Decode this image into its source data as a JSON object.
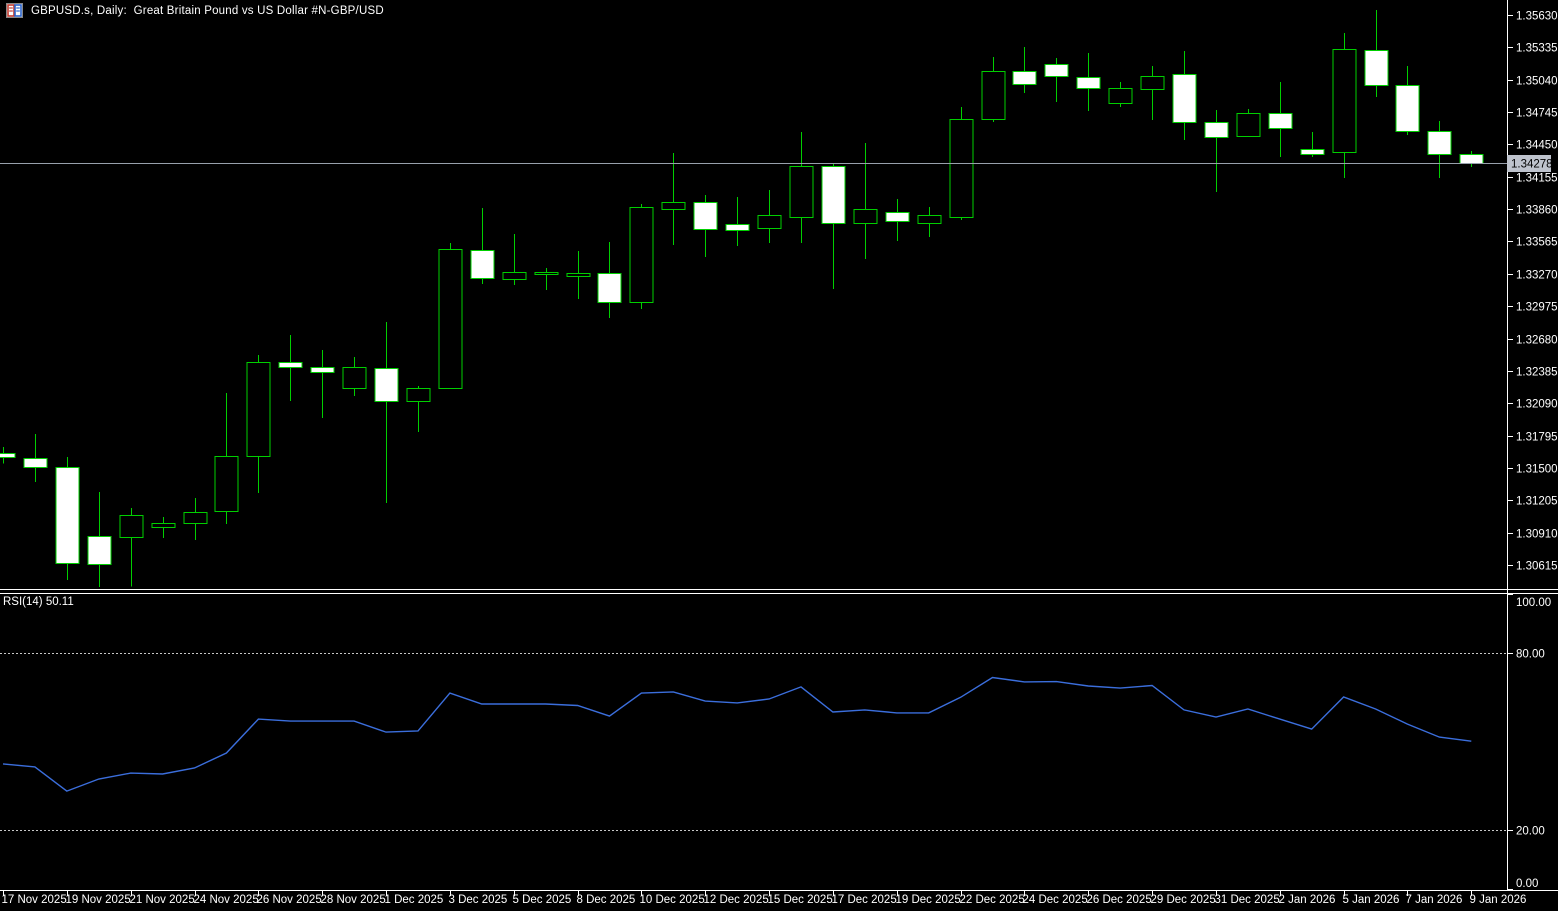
{
  "header": {
    "title": "GBPUSD.s, Daily:  Great Britain Pound vs US Dollar #N-GBP/USD",
    "icon": "candlestick-chart-icon"
  },
  "colors": {
    "background": "#000000",
    "candle_outline": "#00CF00",
    "bull_fill": "#000000",
    "bear_fill": "#FFFFFF",
    "axis_text": "#FFFFFF",
    "axis_line": "#FFFFFF",
    "level_dashed": "#C8C8C8",
    "rsi_line": "#3B6EDC",
    "current_price_line": "#98A0AC",
    "price_marker_bg": "#BEC3CD",
    "price_marker_text": "#000000"
  },
  "chart_data": {
    "type": "candlestick",
    "symbol": "GBPUSD.s",
    "timeframe": "Daily",
    "description": "Great Britain Pound vs US Dollar #N-GBP/USD",
    "price_axis": {
      "ticks": [
        "1.35630",
        "1.35335",
        "1.35040",
        "1.34745",
        "1.34450",
        "1.34155",
        "1.33860",
        "1.33565",
        "1.33270",
        "1.32975",
        "1.32680",
        "1.32385",
        "1.32090",
        "1.31795",
        "1.31500",
        "1.31205",
        "1.30910",
        "1.30615"
      ],
      "tick_step": 0.00295,
      "current_price": 1.34278,
      "current_price_label": "1.34278"
    },
    "x_axis": {
      "labels": [
        "17 Nov 2025",
        "19 Nov 2025",
        "21 Nov 2025",
        "24 Nov 2025",
        "26 Nov 2025",
        "28 Nov 2025",
        "1 Dec 2025",
        "3 Dec 2025",
        "5 Dec 2025",
        "8 Dec 2025",
        "10 Dec 2025",
        "12 Dec 2025",
        "15 Dec 2025",
        "17 Dec 2025",
        "19 Dec 2025",
        "22 Dec 2025",
        "24 Dec 2025",
        "26 Dec 2025",
        "29 Dec 2025",
        "31 Dec 2025",
        "2 Jan 2026",
        "5 Jan 2026",
        "7 Jan 2026",
        "9 Jan 2026"
      ],
      "label_every_n_bars": 2
    },
    "candles": [
      {
        "d": "17 Nov 2025",
        "o": 1.3164,
        "h": 1.3169,
        "l": 1.3154,
        "c": 1.316
      },
      {
        "d": "18 Nov 2025",
        "o": 1.3159,
        "h": 1.31809,
        "l": 1.31371,
        "c": 1.31508
      },
      {
        "d": "19 Nov 2025",
        "o": 1.31508,
        "h": 1.31599,
        "l": 1.30477,
        "c": 1.30632
      },
      {
        "d": "20 Nov 2025",
        "o": 1.30879,
        "h": 1.3128,
        "l": 1.30413,
        "c": 1.30623
      },
      {
        "d": "21 Nov 2025",
        "o": 1.30869,
        "h": 1.31134,
        "l": 1.3042,
        "c": 1.3107
      },
      {
        "d": "23 Nov 2025",
        "o": 1.30961,
        "h": 1.31052,
        "l": 1.3086,
        "c": 1.30997
      },
      {
        "d": "24 Nov 2025",
        "o": 1.30997,
        "h": 1.31225,
        "l": 1.30842,
        "c": 1.31097
      },
      {
        "d": "25 Nov 2025",
        "o": 1.31106,
        "h": 1.32183,
        "l": 1.30988,
        "c": 1.31608
      },
      {
        "d": "26 Nov 2025",
        "o": 1.31608,
        "h": 1.32529,
        "l": 1.31271,
        "c": 1.32465
      },
      {
        "d": "27 Nov 2025",
        "o": 1.32465,
        "h": 1.32712,
        "l": 1.3211,
        "c": 1.3242
      },
      {
        "d": "28 Nov 2025",
        "o": 1.3242,
        "h": 1.32575,
        "l": 1.31955,
        "c": 1.32374
      },
      {
        "d": "30 Nov 2025",
        "o": 1.32228,
        "h": 1.32511,
        "l": 1.32155,
        "c": 1.3242
      },
      {
        "d": "1 Dec 2025",
        "o": 1.32411,
        "h": 1.3283,
        "l": 1.31179,
        "c": 1.3211
      },
      {
        "d": "2 Dec 2025",
        "o": 1.3211,
        "h": 1.32246,
        "l": 1.31827,
        "c": 1.32228
      },
      {
        "d": "3 Dec 2025",
        "o": 1.32228,
        "h": 1.33551,
        "l": 1.32228,
        "c": 1.33496
      },
      {
        "d": "4 Dec 2025",
        "o": 1.33487,
        "h": 1.3387,
        "l": 1.33177,
        "c": 1.33232
      },
      {
        "d": "5 Dec 2025",
        "o": 1.33223,
        "h": 1.33633,
        "l": 1.33168,
        "c": 1.33286
      },
      {
        "d": "7 Dec 2025",
        "o": 1.33268,
        "h": 1.33323,
        "l": 1.33122,
        "c": 1.33286
      },
      {
        "d": "8 Dec 2025",
        "o": 1.3325,
        "h": 1.33478,
        "l": 1.3304,
        "c": 1.33277
      },
      {
        "d": "9 Dec 2025",
        "o": 1.33277,
        "h": 1.3356,
        "l": 1.32867,
        "c": 1.33013
      },
      {
        "d": "10 Dec 2025",
        "o": 1.33013,
        "h": 1.33906,
        "l": 1.32949,
        "c": 1.33879
      },
      {
        "d": "11 Dec 2025",
        "o": 1.33861,
        "h": 1.34372,
        "l": 1.33532,
        "c": 1.33925
      },
      {
        "d": "12 Dec 2025",
        "o": 1.33925,
        "h": 1.33988,
        "l": 1.33423,
        "c": 1.33678
      },
      {
        "d": "14 Dec 2025",
        "o": 1.33724,
        "h": 1.3397,
        "l": 1.33523,
        "c": 1.33669
      },
      {
        "d": "15 Dec 2025",
        "o": 1.33687,
        "h": 1.34034,
        "l": 1.33551,
        "c": 1.33806
      },
      {
        "d": "16 Dec 2025",
        "o": 1.33788,
        "h": 1.34563,
        "l": 1.33551,
        "c": 1.34253
      },
      {
        "d": "17 Dec 2025",
        "o": 1.34253,
        "h": 1.3428,
        "l": 1.33131,
        "c": 1.33733
      },
      {
        "d": "18 Dec 2025",
        "o": 1.33733,
        "h": 1.34463,
        "l": 1.33405,
        "c": 1.33861
      },
      {
        "d": "19 Dec 2025",
        "o": 1.33833,
        "h": 1.33952,
        "l": 1.33569,
        "c": 1.33751
      },
      {
        "d": "21 Dec 2025",
        "o": 1.33733,
        "h": 1.33879,
        "l": 1.33605,
        "c": 1.33806
      },
      {
        "d": "22 Dec 2025",
        "o": 1.33788,
        "h": 1.34791,
        "l": 1.3376,
        "c": 1.34682
      },
      {
        "d": "23 Dec 2025",
        "o": 1.34682,
        "h": 1.35247,
        "l": 1.34654,
        "c": 1.35119
      },
      {
        "d": "24 Dec 2025",
        "o": 1.35119,
        "h": 1.35338,
        "l": 1.34919,
        "c": 1.35001
      },
      {
        "d": "25 Dec 2025",
        "o": 1.35183,
        "h": 1.35238,
        "l": 1.34837,
        "c": 1.35074
      },
      {
        "d": "26 Dec 2025",
        "o": 1.35065,
        "h": 1.35283,
        "l": 1.34755,
        "c": 1.34964
      },
      {
        "d": "28 Dec 2025",
        "o": 1.34828,
        "h": 1.35019,
        "l": 1.34791,
        "c": 1.34964
      },
      {
        "d": "29 Dec 2025",
        "o": 1.34955,
        "h": 1.35165,
        "l": 1.34672,
        "c": 1.35074
      },
      {
        "d": "30 Dec 2025",
        "o": 1.35092,
        "h": 1.35302,
        "l": 1.3449,
        "c": 1.34654
      },
      {
        "d": "31 Dec 2025",
        "o": 1.34654,
        "h": 1.34764,
        "l": 1.34016,
        "c": 1.34517
      },
      {
        "d": "1 Jan 2026",
        "o": 1.34527,
        "h": 1.34773,
        "l": 1.34527,
        "c": 1.34736
      },
      {
        "d": "2 Jan 2026",
        "o": 1.34736,
        "h": 1.35019,
        "l": 1.34335,
        "c": 1.346
      },
      {
        "d": "4 Jan 2026",
        "o": 1.34408,
        "h": 1.34563,
        "l": 1.34335,
        "c": 1.34362
      },
      {
        "d": "5 Jan 2026",
        "o": 1.34381,
        "h": 1.35466,
        "l": 1.34143,
        "c": 1.3532
      },
      {
        "d": "6 Jan 2026",
        "o": 1.35311,
        "h": 1.35676,
        "l": 1.34882,
        "c": 1.34992
      },
      {
        "d": "7 Jan 2026",
        "o": 1.34992,
        "h": 1.35165,
        "l": 1.34536,
        "c": 1.34572
      },
      {
        "d": "8 Jan 2026",
        "o": 1.34572,
        "h": 1.34662,
        "l": 1.34143,
        "c": 1.34362
      },
      {
        "d": "9 Jan 2026",
        "o": 1.34362,
        "h": 1.3439,
        "l": 1.34244,
        "c": 1.34278
      }
    ],
    "rsi": {
      "label": "RSI(14) 50.11",
      "period": 14,
      "current": 50.11,
      "axis_labels": [
        "100.00",
        "80.00",
        "20.00",
        "0.00"
      ],
      "level_lines": [
        80,
        20
      ],
      "range": [
        0,
        100
      ],
      "values": [
        42.4,
        41.4,
        33.2,
        37.3,
        39.3,
        39.0,
        41.0,
        46.1,
        57.6,
        56.9,
        56.9,
        56.9,
        53.2,
        53.6,
        66.4,
        62.7,
        62.7,
        62.7,
        62.2,
        58.6,
        66.4,
        66.8,
        63.7,
        63.1,
        64.4,
        68.5,
        60.0,
        60.7,
        59.7,
        59.7,
        65.0,
        71.7,
        70.2,
        70.3,
        68.8,
        68.1,
        69.0,
        60.7,
        58.3,
        61.0,
        57.6,
        54.2,
        65.1,
        61.0,
        55.9,
        51.5,
        50.11
      ]
    }
  }
}
